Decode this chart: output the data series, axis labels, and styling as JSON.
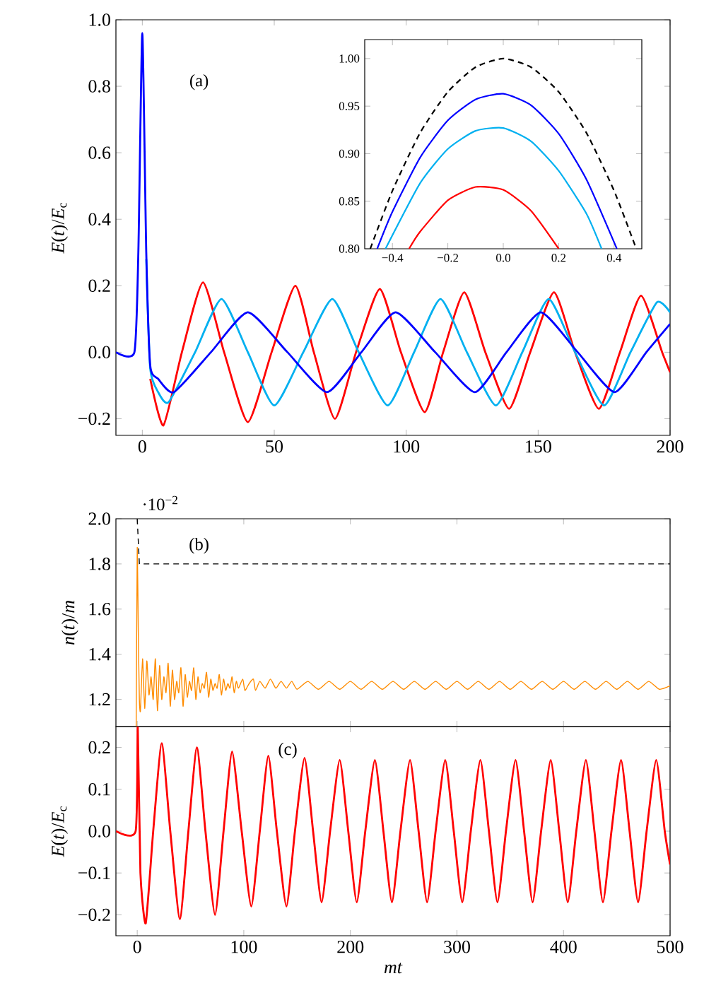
{
  "chart_data": [
    {
      "type": "line",
      "ylabel": "*E*(*t*)/*E*$_{c}$",
      "xlim": [
        -10,
        200
      ],
      "ylim": [
        -0.25,
        1.0
      ],
      "xticks": [
        0,
        50,
        100,
        150,
        200
      ],
      "yticks": [
        {
          "value": -0.2,
          "label": "−0.2"
        },
        {
          "value": 0,
          "label": "0.0"
        },
        0.2,
        0.4,
        0.6,
        0.8,
        {
          "value": 1,
          "label": "1.0"
        }
      ],
      "annotations": [
        "(a)"
      ],
      "series": [
        {
          "color": "#ff0000",
          "x": [
            3,
            8,
            15,
            23,
            31,
            40,
            49,
            58,
            65,
            73,
            81,
            90,
            98,
            107,
            114,
            122,
            130,
            139,
            147,
            156,
            164,
            173,
            181,
            189,
            197,
            200
          ],
          "values": [
            -0.08,
            -0.22,
            0,
            0.21,
            0,
            -0.21,
            0,
            0.2,
            0,
            -0.2,
            0,
            0.19,
            0,
            -0.18,
            0,
            0.18,
            0,
            -0.17,
            0,
            0.18,
            0,
            -0.17,
            0,
            0.17,
            0,
            -0.06
          ]
        },
        {
          "color": "#00b0f0",
          "x": [
            1.5,
            3,
            6,
            10,
            20,
            30,
            40,
            50,
            61,
            72,
            82,
            93,
            103,
            113,
            123,
            134,
            144,
            154,
            164,
            175,
            185,
            195,
            200
          ],
          "values": [
            0.28,
            -0.05,
            -0.12,
            -0.15,
            0,
            0.16,
            0,
            -0.16,
            0,
            0.16,
            0,
            -0.16,
            0,
            0.16,
            0,
            -0.16,
            0,
            0.16,
            0,
            -0.16,
            0,
            0.15,
            0.12
          ]
        },
        {
          "color": "#0000ff",
          "x": [
            -10,
            -3,
            -1.5,
            0,
            1.5,
            3,
            6,
            12,
            26,
            40,
            55,
            70,
            83,
            96,
            111,
            126,
            138,
            151,
            165,
            179,
            191,
            200
          ],
          "values": [
            0,
            0,
            0.3,
            0.96,
            0.3,
            -0.04,
            -0.08,
            -0.12,
            0,
            0.12,
            0,
            -0.12,
            0,
            0.12,
            0,
            -0.12,
            0,
            0.12,
            0,
            -0.12,
            0,
            0.085
          ]
        }
      ]
    },
    {
      "type": "line",
      "xlim": [
        -0.5,
        0.5
      ],
      "ylim": [
        0.8,
        1.02
      ],
      "xticks": [
        {
          "value": -0.4,
          "label": "−0.4"
        },
        {
          "value": -0.2,
          "label": "−0.2"
        },
        {
          "value": 0,
          "label": "0.0"
        },
        0.2,
        0.4
      ],
      "yticks": [
        {
          "value": 0.8,
          "label": "0.80"
        },
        0.85,
        {
          "value": 0.9,
          "label": "0.90"
        },
        0.95,
        {
          "value": 1,
          "label": "1.00"
        }
      ],
      "series": [
        {
          "color": "#000000",
          "line_style": "dashed",
          "x": [
            -0.48,
            -0.4,
            -0.3,
            -0.2,
            -0.1,
            0,
            0.1,
            0.2,
            0.3,
            0.4,
            0.48
          ],
          "values": [
            0.8,
            0.861,
            0.922,
            0.965,
            0.991,
            1.0,
            0.991,
            0.965,
            0.922,
            0.861,
            0.8
          ]
        },
        {
          "color": "#0000ff",
          "x": [
            -0.455,
            -0.4,
            -0.3,
            -0.2,
            -0.1,
            0,
            0.1,
            0.2,
            0.3,
            0.41
          ],
          "values": [
            0.8,
            0.839,
            0.896,
            0.935,
            0.957,
            0.963,
            0.951,
            0.921,
            0.873,
            0.8
          ]
        },
        {
          "color": "#00b0f0",
          "x": [
            -0.425,
            -0.3,
            -0.2,
            -0.1,
            0,
            0.1,
            0.2,
            0.3,
            0.355
          ],
          "values": [
            0.8,
            0.869,
            0.905,
            0.924,
            0.927,
            0.913,
            0.882,
            0.837,
            0.8
          ]
        },
        {
          "color": "#ff0000",
          "x": [
            -0.34,
            -0.3,
            -0.2,
            -0.1,
            0,
            0.1,
            0.2
          ],
          "values": [
            0.8,
            0.818,
            0.851,
            0.865,
            0.862,
            0.84,
            0.8
          ]
        }
      ]
    },
    {
      "type": "line",
      "ylabel": "*n*(*t*)/*m*",
      "xlim": [
        -20,
        500
      ],
      "ylim": [
        1.08,
        2.0
      ],
      "xticks": [
        0,
        100,
        200,
        300,
        400,
        500
      ],
      "yticks": [
        1.2,
        1.4,
        1.6,
        1.8,
        {
          "value": 2,
          "label": "2.0"
        }
      ],
      "tick_labels": "y",
      "annotations": [
        "(b)",
        "·10$^{−2}$"
      ],
      "series": [
        {
          "color": "#000000",
          "line_style": "dashed",
          "x": [
            0,
            1,
            2,
            500
          ],
          "values": [
            2.0,
            1.9,
            1.8,
            1.8
          ]
        },
        {
          "color": "#ff8c00",
          "x": [
            -1,
            0,
            1,
            2,
            3,
            5,
            7,
            9,
            11,
            13,
            15,
            17,
            19,
            21,
            23,
            25,
            27,
            29,
            31,
            33,
            35,
            37,
            39,
            41,
            43,
            45,
            47,
            49,
            51,
            53,
            55,
            57,
            59,
            61,
            63,
            65,
            67,
            69,
            71,
            73,
            75,
            77,
            79,
            81,
            83,
            85,
            87,
            89,
            91,
            93,
            95,
            99,
            101,
            105,
            109,
            111,
            115,
            120,
            125,
            130,
            135,
            140,
            145,
            150,
            160,
            170,
            180,
            190,
            200,
            210,
            220,
            230,
            240,
            250,
            260,
            270,
            280,
            290,
            300,
            310,
            320,
            330,
            340,
            350,
            360,
            370,
            380,
            390,
            400,
            410,
            420,
            430,
            440,
            450,
            460,
            470,
            480,
            490,
            500
          ],
          "values": [
            1.08,
            1.87,
            1.5,
            1.2,
            1.15,
            1.38,
            1.16,
            1.37,
            1.22,
            1.3,
            1.2,
            1.38,
            1.15,
            1.35,
            1.2,
            1.3,
            1.23,
            1.36,
            1.17,
            1.33,
            1.2,
            1.28,
            1.23,
            1.34,
            1.17,
            1.31,
            1.21,
            1.28,
            1.24,
            1.34,
            1.2,
            1.3,
            1.23,
            1.27,
            1.25,
            1.32,
            1.21,
            1.29,
            1.24,
            1.27,
            1.25,
            1.31,
            1.22,
            1.29,
            1.24,
            1.27,
            1.25,
            1.3,
            1.23,
            1.28,
            1.25,
            1.29,
            1.24,
            1.27,
            1.29,
            1.24,
            1.28,
            1.25,
            1.29,
            1.25,
            1.28,
            1.25,
            1.28,
            1.245,
            1.28,
            1.245,
            1.28,
            1.245,
            1.28,
            1.245,
            1.28,
            1.245,
            1.28,
            1.245,
            1.28,
            1.245,
            1.28,
            1.245,
            1.28,
            1.245,
            1.28,
            1.245,
            1.28,
            1.245,
            1.28,
            1.245,
            1.28,
            1.245,
            1.28,
            1.245,
            1.28,
            1.245,
            1.28,
            1.245,
            1.28,
            1.245,
            1.28,
            1.245,
            1.26
          ]
        }
      ]
    },
    {
      "type": "line",
      "ylabel": "*E*(*t*)/*E*$_{c}$",
      "xlabel": "mt",
      "xlim": [
        -20,
        500
      ],
      "ylim": [
        -0.25,
        0.25
      ],
      "xticks": [
        0,
        100,
        200,
        300,
        400,
        500
      ],
      "yticks": [
        {
          "value": -0.2,
          "label": "−0.2"
        },
        {
          "value": -0.1,
          "label": "−0.1"
        },
        {
          "value": 0,
          "label": "0.0"
        },
        0.1,
        0.2
      ],
      "annotations": [
        "(c)"
      ],
      "series": [
        {
          "color": "#ff0000",
          "x": [
            -20,
            -1.5,
            0.5,
            3,
            8,
            15,
            23,
            31,
            40,
            48,
            56,
            64,
            73,
            81,
            89,
            98,
            107,
            115,
            123,
            131,
            140,
            148,
            157,
            165,
            173,
            181,
            190,
            198,
            206,
            214,
            223,
            231,
            239,
            247,
            256,
            264,
            272,
            280,
            289,
            297,
            305,
            313,
            322,
            330,
            338,
            346,
            355,
            363,
            371,
            379,
            388,
            396,
            404,
            412,
            421,
            429,
            437,
            445,
            454,
            462,
            470,
            478,
            487,
            495,
            500
          ],
          "values": [
            0,
            0,
            0.25,
            -0.1,
            -0.22,
            0,
            0.21,
            0,
            -0.21,
            0,
            0.2,
            0,
            -0.2,
            0,
            0.19,
            0,
            -0.18,
            0,
            0.18,
            0,
            -0.18,
            0,
            0.175,
            0,
            -0.17,
            0,
            0.17,
            0,
            -0.17,
            0,
            0.17,
            0,
            -0.17,
            0,
            0.17,
            0,
            -0.17,
            0,
            0.17,
            0,
            -0.17,
            0,
            0.17,
            0,
            -0.17,
            0,
            0.17,
            0,
            -0.17,
            0,
            0.17,
            0,
            -0.17,
            0,
            0.17,
            0,
            -0.17,
            0,
            0.17,
            0,
            -0.17,
            0,
            0.17,
            0,
            -0.08
          ]
        }
      ]
    }
  ]
}
